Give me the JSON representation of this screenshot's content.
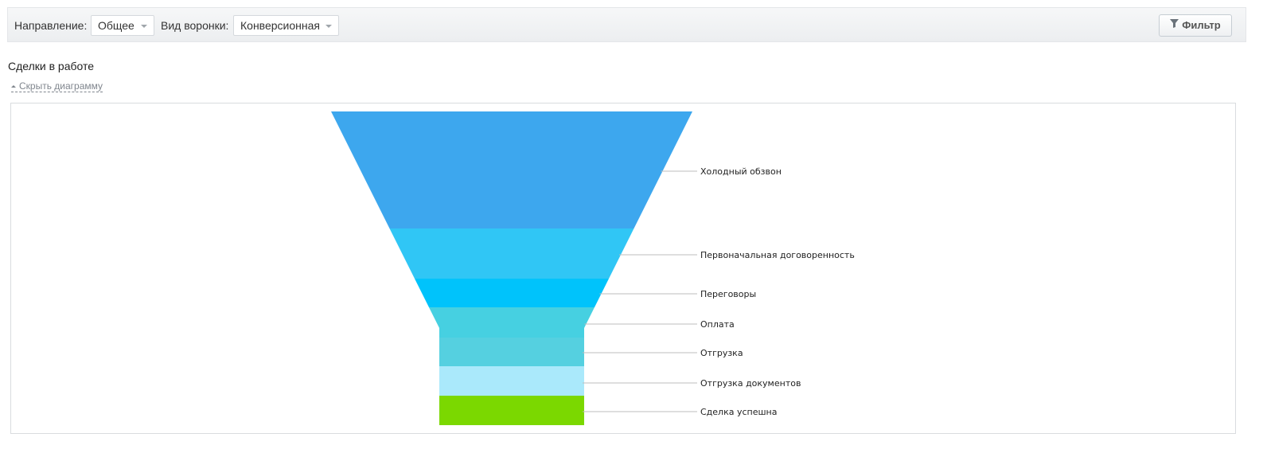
{
  "toolbar": {
    "direction_label": "Направление:",
    "direction_value": "Общее",
    "funnel_type_label": "Вид воронки:",
    "funnel_type_value": "Конверсионная",
    "filter_label": "Фильтр"
  },
  "section": {
    "title": "Сделки в работе",
    "hide_chart_link": "Скрыть диаграмму"
  },
  "chart_data": {
    "type": "funnel",
    "title": "",
    "categories": [
      "Холодный обзвон",
      "Первоначальная договоренность",
      "Переговоры",
      "Оплата",
      "Отгрузка",
      "Отгрузка документов",
      "Сделка успешна"
    ],
    "colors": [
      "#3da7ee",
      "#30c6f5",
      "#00c3fb",
      "#46d0e1",
      "#55d0e0",
      "#aae9fb",
      "#7bd800"
    ]
  }
}
